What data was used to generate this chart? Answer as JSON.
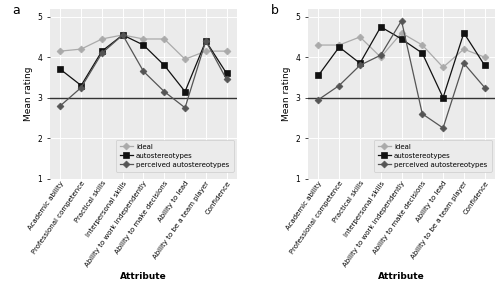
{
  "attributes": [
    "Academic ability",
    "Professional competence",
    "Practical skills",
    "Interpersonal skills",
    "Ability to work independently",
    "Ability to make decisions",
    "Ability to lead",
    "Ability to be a team player",
    "Confidence"
  ],
  "panel_a": {
    "title": "a",
    "ideal": [
      4.15,
      4.2,
      4.45,
      4.55,
      4.45,
      4.45,
      3.95,
      4.15,
      4.15
    ],
    "autostereotypes": [
      3.7,
      3.3,
      4.15,
      4.55,
      4.3,
      3.8,
      3.15,
      4.4,
      3.6
    ],
    "perceived_autostereotypes": [
      2.8,
      3.25,
      4.1,
      4.55,
      3.65,
      3.15,
      2.75,
      4.4,
      3.45
    ]
  },
  "panel_b": {
    "title": "b",
    "ideal": [
      4.3,
      4.3,
      4.5,
      4.0,
      4.6,
      4.3,
      3.75,
      4.2,
      4.0
    ],
    "autostereotypes": [
      3.55,
      4.25,
      3.85,
      4.75,
      4.45,
      4.1,
      3.0,
      4.6,
      3.8
    ],
    "perceived_autostereotypes": [
      2.95,
      3.3,
      3.8,
      4.05,
      4.9,
      2.6,
      2.25,
      3.85,
      3.25
    ]
  },
  "color_ideal": "#aaaaaa",
  "color_auto": "#111111",
  "color_perc": "#555555",
  "ylim": [
    1,
    5.2
  ],
  "yticks": [
    1,
    2,
    3,
    4,
    5
  ],
  "ylabel": "Mean rating",
  "xlabel": "Attribute",
  "hline_y": 3.0,
  "bg_color": "#ebebeb",
  "grid_color": "#ffffff",
  "legend_labels": [
    "ideal",
    "autostereotypes",
    "perceived autostereotypes"
  ]
}
